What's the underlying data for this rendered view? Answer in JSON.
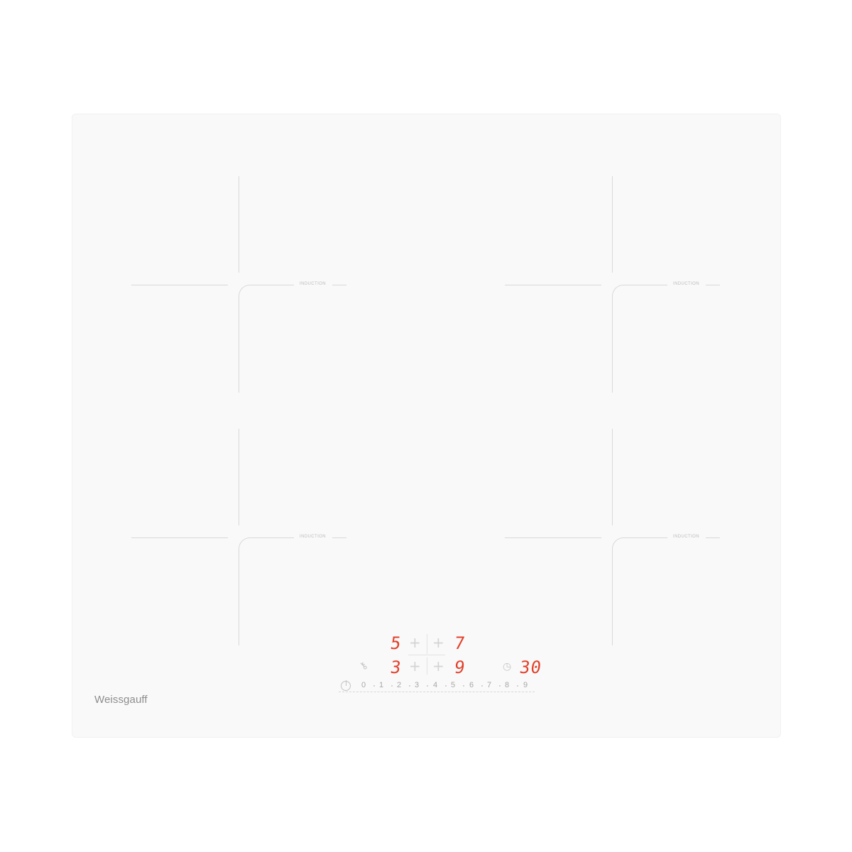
{
  "brand": "Weissgauff",
  "zones": [
    {
      "label": "INDUCTION"
    },
    {
      "label": "INDUCTION"
    },
    {
      "label": "INDUCTION"
    },
    {
      "label": "INDUCTION"
    }
  ],
  "displays": {
    "front_left": "5",
    "front_right": "7",
    "rear_left": "3",
    "rear_right": "9",
    "timer": "30"
  },
  "slider": {
    "values": [
      "0",
      "1",
      "2",
      "3",
      "4",
      "5",
      "6",
      "7",
      "8",
      "9"
    ]
  },
  "icons": {
    "lock": "key-icon",
    "timer": "clock-icon",
    "power": "power-icon"
  },
  "colors": {
    "led": "#e2402a",
    "surface": "#f9f9f9"
  }
}
